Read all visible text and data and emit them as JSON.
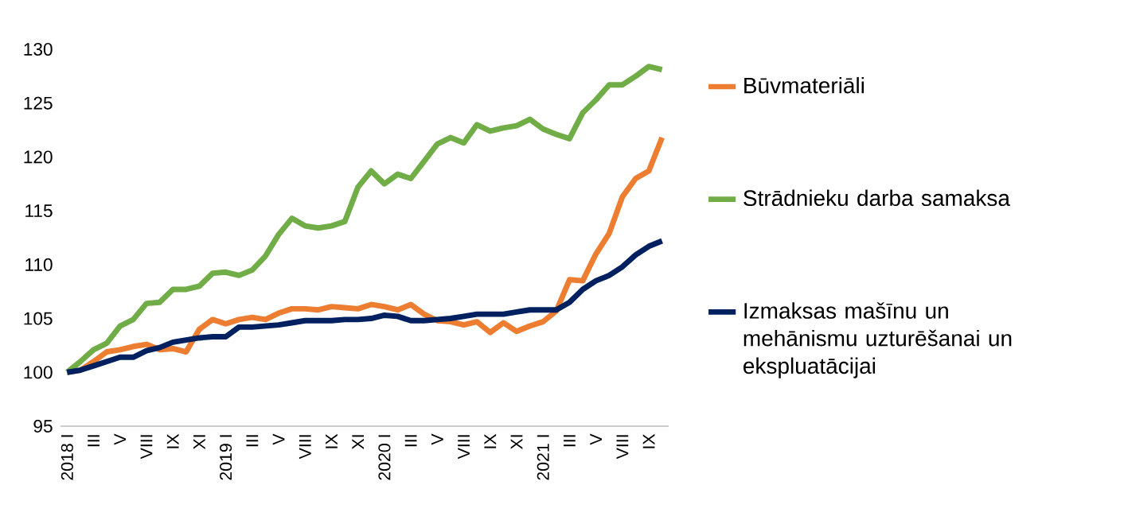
{
  "chart_data": {
    "type": "line",
    "categories": [
      "2018 I",
      null,
      "III",
      null,
      "V",
      null,
      "VIII",
      null,
      "IX",
      null,
      "XI",
      null,
      "2019 I",
      null,
      "III",
      null,
      "V",
      null,
      "VIII",
      null,
      "IX",
      null,
      "XI",
      null,
      "2020 I",
      null,
      "III",
      null,
      "V",
      null,
      "VIII",
      null,
      "IX",
      null,
      "XI",
      null,
      "2021 I",
      null,
      "III",
      null,
      "V",
      null,
      "VIII",
      null,
      "IX",
      null
    ],
    "series": [
      {
        "name": "Būvmateriāli",
        "color": "#ed7d31",
        "values": [
          100,
          100.2,
          101.0,
          101.9,
          102.1,
          102.4,
          102.6,
          102.1,
          102.2,
          101.9,
          104.0,
          104.9,
          104.5,
          104.9,
          105.1,
          104.9,
          105.5,
          105.9,
          105.9,
          105.8,
          106.1,
          106.0,
          105.9,
          106.3,
          106.1,
          105.8,
          106.3,
          105.4,
          104.8,
          104.7,
          104.4,
          104.7,
          103.7,
          104.6,
          103.8,
          104.3,
          104.7,
          105.7,
          108.6,
          108.5,
          111.0,
          112.9,
          116.3,
          118.0,
          118.7,
          121.8
        ]
      },
      {
        "name": "Strādnieku darba samaksa",
        "color": "#70ad47",
        "values": [
          100,
          101.0,
          102.1,
          102.7,
          104.3,
          104.9,
          106.4,
          106.5,
          107.7,
          107.7,
          108.0,
          109.2,
          109.3,
          109.0,
          109.5,
          110.8,
          112.8,
          114.3,
          113.6,
          113.4,
          113.6,
          114.0,
          117.2,
          118.7,
          117.5,
          118.4,
          118.0,
          119.6,
          121.2,
          121.8,
          121.3,
          123.0,
          122.4,
          122.7,
          122.9,
          123.5,
          122.6,
          122.1,
          121.7,
          124.1,
          125.3,
          126.7,
          126.7,
          127.5,
          128.4,
          128.1
        ]
      },
      {
        "name": "Izmaksas mašīnu un mehānismu uzturēšanai un ekspluatācijai",
        "color": "#002060",
        "values": [
          100,
          100.2,
          100.6,
          101.0,
          101.4,
          101.4,
          102.0,
          102.3,
          102.8,
          103.0,
          103.2,
          103.3,
          103.3,
          104.2,
          104.2,
          104.3,
          104.4,
          104.6,
          104.8,
          104.8,
          104.8,
          104.9,
          104.9,
          105.0,
          105.3,
          105.2,
          104.8,
          104.8,
          104.9,
          105.0,
          105.2,
          105.4,
          105.4,
          105.4,
          105.6,
          105.8,
          105.8,
          105.8,
          106.5,
          107.7,
          108.5,
          109.0,
          109.8,
          110.9,
          111.7,
          112.2
        ]
      }
    ],
    "ylim": [
      95,
      130
    ],
    "yticks": [
      95,
      100,
      105,
      110,
      115,
      120,
      125,
      130
    ],
    "legend": "right"
  }
}
